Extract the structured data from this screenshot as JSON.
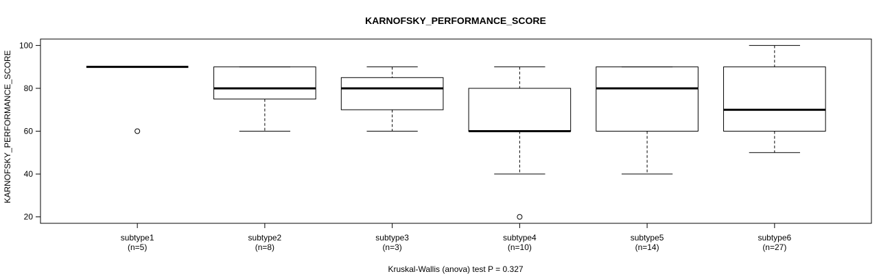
{
  "chart_data": {
    "type": "box",
    "title": "KARNOFSKY_PERFORMANCE_SCORE",
    "xlabel": "Kruskal-Wallis (anova) test P = 0.327",
    "ylabel": "KARNOFSKY_PERFORMANCE_SCORE",
    "ylim": [
      17,
      103
    ],
    "yticks": [
      20,
      40,
      60,
      80,
      100
    ],
    "grid": false,
    "groups": [
      {
        "name": "subtype1",
        "n_label": "(n=5)",
        "whisker_low": 90,
        "q1": 90,
        "median": 90,
        "q3": 90,
        "whisker_high": 90,
        "outliers": [
          60
        ]
      },
      {
        "name": "subtype2",
        "n_label": "(n=8)",
        "whisker_low": 60,
        "q1": 75,
        "median": 80,
        "q3": 90,
        "whisker_high": 90,
        "outliers": []
      },
      {
        "name": "subtype3",
        "n_label": "(n=3)",
        "whisker_low": 60,
        "q1": 70,
        "median": 80,
        "q3": 85,
        "whisker_high": 90,
        "outliers": []
      },
      {
        "name": "subtype4",
        "n_label": "(n=10)",
        "whisker_low": 40,
        "q1": 60,
        "median": 60,
        "q3": 80,
        "whisker_high": 90,
        "outliers": [
          20
        ]
      },
      {
        "name": "subtype5",
        "n_label": "(n=14)",
        "whisker_low": 40,
        "q1": 60,
        "median": 80,
        "q3": 90,
        "whisker_high": 90,
        "outliers": []
      },
      {
        "name": "subtype6",
        "n_label": "(n=27)",
        "whisker_low": 50,
        "q1": 60,
        "median": 70,
        "q3": 90,
        "whisker_high": 100,
        "outliers": []
      }
    ]
  }
}
